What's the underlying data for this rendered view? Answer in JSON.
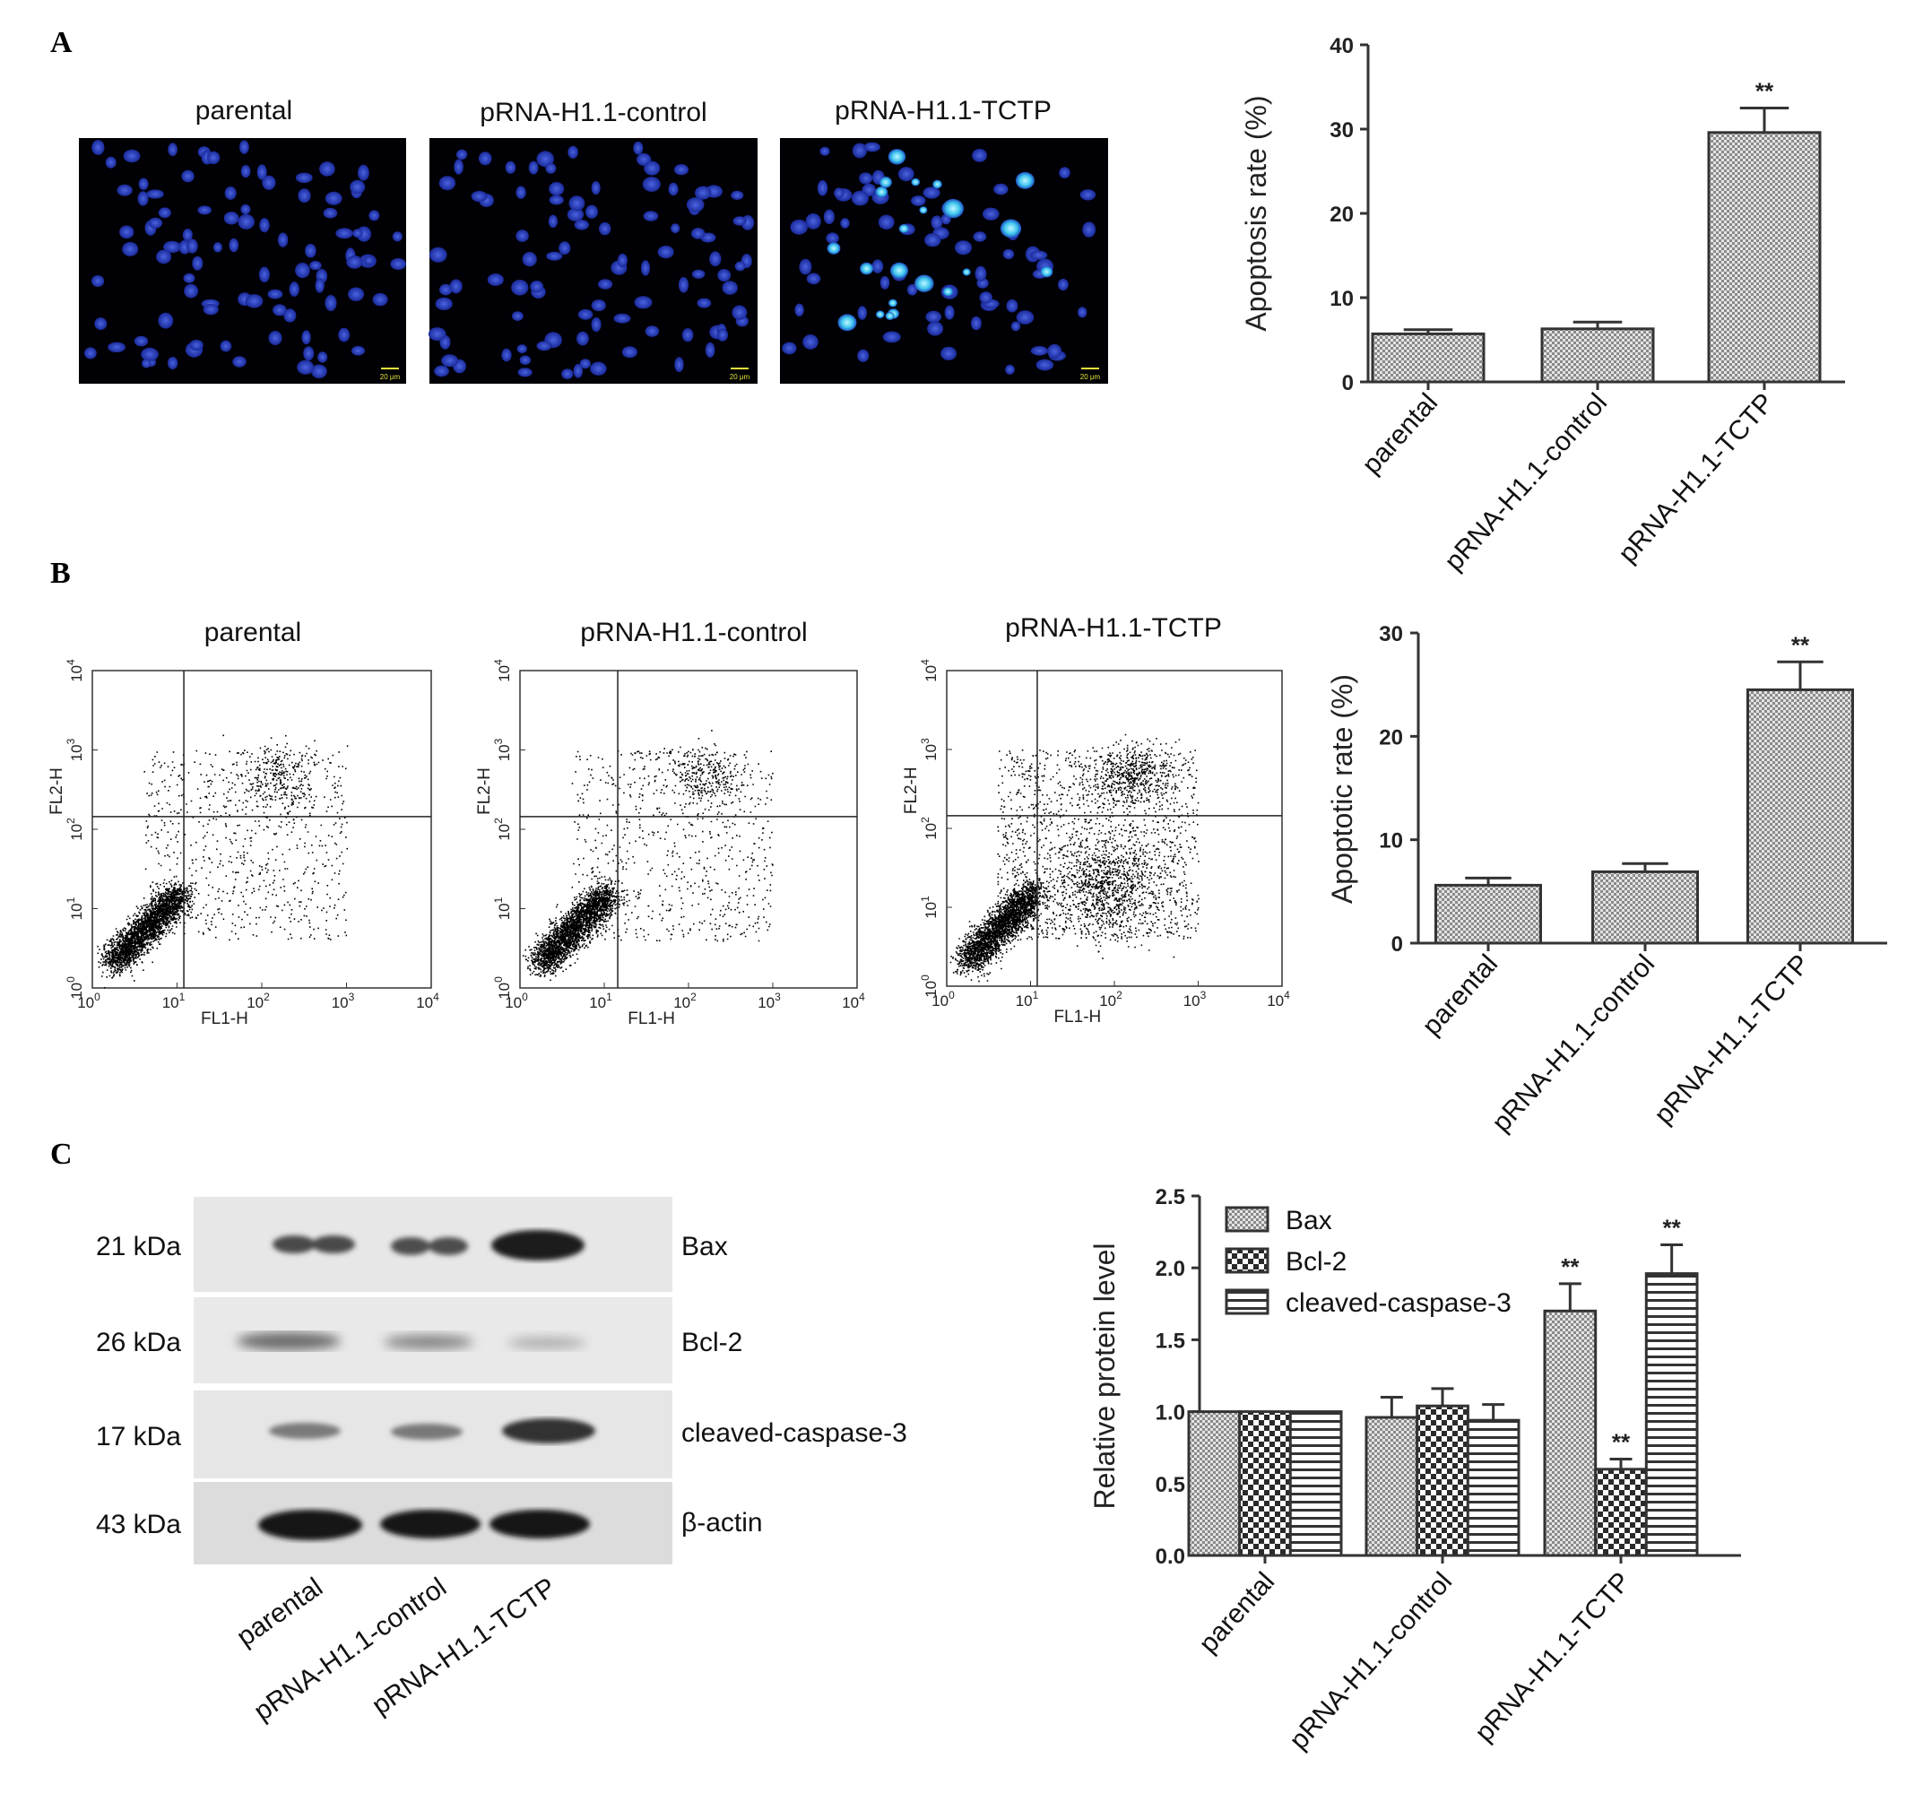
{
  "panels": {
    "A": {
      "letter": "A",
      "image_titles": [
        "parental",
        "pRNA-H1.1-control",
        "pRNA-H1.1-TCTP"
      ],
      "scale_bar_label": "20 μm"
    },
    "B": {
      "letter": "B",
      "plot_titles": [
        "parental",
        "pRNA-H1.1-control",
        "pRNA-H1.1-TCTP"
      ],
      "x_axis": "FL1-H",
      "y_axis": "FL2-H"
    },
    "C": {
      "letter": "C",
      "bands": [
        {
          "mw": "21 kDa",
          "name": "Bax"
        },
        {
          "mw": "26 kDa",
          "name": "Bcl-2"
        },
        {
          "mw": "17 kDa",
          "name": "cleaved-caspase-3"
        },
        {
          "mw": "43 kDa",
          "name": "β-actin"
        }
      ],
      "lanes": [
        "parental",
        "pRNA-H1.1-control",
        "pRNA-H1.1-TCTP"
      ]
    }
  },
  "chart_data": [
    {
      "type": "bar",
      "panel": "A",
      "categories": [
        "parental",
        "pRNA-H1.1-control",
        "pRNA-H1.1-TCTP"
      ],
      "values": [
        5.7,
        6.3,
        29.6
      ],
      "errors": [
        0.5,
        0.8,
        2.9
      ],
      "significance": [
        "",
        "",
        "**"
      ],
      "ylabel": "Apoptosis rate (%)",
      "ylim": [
        0,
        40
      ],
      "yticks": [
        0,
        10,
        20,
        30,
        40
      ]
    },
    {
      "type": "bar",
      "panel": "B",
      "categories": [
        "parental",
        "pRNA-H1.1-control",
        "pRNA-H1.1-TCTP"
      ],
      "values": [
        5.6,
        6.9,
        24.5
      ],
      "errors": [
        0.7,
        0.8,
        2.7
      ],
      "significance": [
        "",
        "",
        "**"
      ],
      "ylabel": "Apoptotic rate (%)",
      "ylim": [
        0,
        30
      ],
      "yticks": [
        0,
        10,
        20,
        30
      ]
    },
    {
      "type": "bar",
      "panel": "C",
      "categories": [
        "parental",
        "pRNA-H1.1-control",
        "pRNA-H1.1-TCTP"
      ],
      "series": [
        {
          "name": "Bax",
          "values": [
            1.0,
            0.96,
            1.7
          ],
          "errors": [
            0,
            0.14,
            0.19
          ],
          "significance": [
            "",
            "",
            "**"
          ]
        },
        {
          "name": "Bcl-2",
          "values": [
            1.0,
            1.04,
            0.6
          ],
          "errors": [
            0,
            0.12,
            0.07
          ],
          "significance": [
            "",
            "",
            "**"
          ]
        },
        {
          "name": "cleaved-caspase-3",
          "values": [
            1.0,
            0.94,
            1.96
          ],
          "errors": [
            0,
            0.11,
            0.2
          ],
          "significance": [
            "",
            "",
            "**"
          ]
        }
      ],
      "ylabel": "Relative protein level",
      "ylim": [
        0,
        2.5
      ],
      "yticks": [
        "0.0",
        "0.5",
        "1.0",
        "1.5",
        "2.0",
        "2.5"
      ],
      "legend_position": "top-left"
    }
  ]
}
